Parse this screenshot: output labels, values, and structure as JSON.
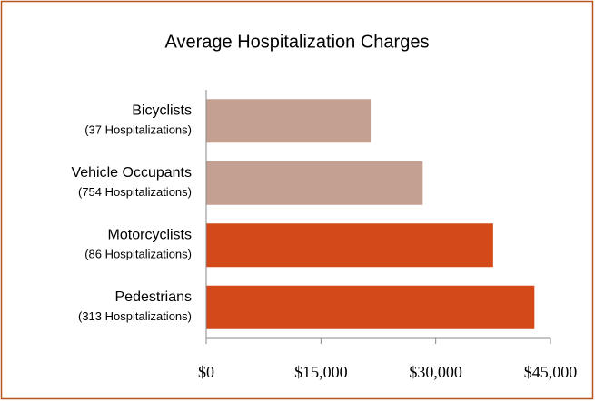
{
  "chart_data": {
    "type": "barh",
    "title": "Average Hospitalization Charges",
    "categories": [
      "Bicyclists",
      "Vehicle Occupants",
      "Motorcyclists",
      "Pedestrians"
    ],
    "category_sublabels": [
      "(37 Hospitalizations)",
      "(754 Hospitalizations)",
      "(86 Hospitalizations)",
      "(313 Hospitalizations)"
    ],
    "values": [
      21500,
      28300,
      37500,
      42900
    ],
    "colors": [
      "#c4a092",
      "#c4a092",
      "#d4491a",
      "#d4491a"
    ],
    "xlim": [
      0,
      45000
    ],
    "xticks": [
      {
        "value": 0,
        "label": "$0"
      },
      {
        "value": 15000,
        "label": "$15,000"
      },
      {
        "value": 30000,
        "label": "$30,000"
      },
      {
        "value": 45000,
        "label": "$45,000"
      }
    ],
    "grid": false
  }
}
